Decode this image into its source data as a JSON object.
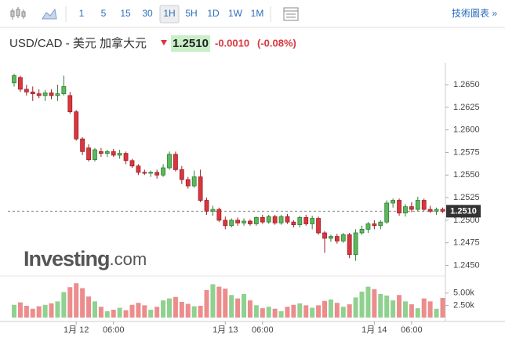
{
  "toolbar": {
    "intervals": [
      "1",
      "5",
      "15",
      "30",
      "1H",
      "5H",
      "1D",
      "1W",
      "1M"
    ],
    "active_interval": "1H",
    "technical_chart": "技術圖表 »"
  },
  "header": {
    "change": "-0.0010",
    "change_pct": "(-0.08%)"
  },
  "watermark": [
    "Investing",
    ".com"
  ],
  "chart_data": {
    "type": "candlestick",
    "title": "USD/CAD - 美元 加拿大元",
    "last_price": {
      "value": 1.251,
      "label": "1.2510"
    },
    "categories": [
      null,
      null,
      null,
      null,
      null,
      null,
      null,
      null,
      null,
      null,
      "1月 12",
      null,
      null,
      null,
      null,
      null,
      "06:00",
      null,
      null,
      null,
      null,
      null,
      null,
      null,
      null,
      null,
      null,
      null,
      null,
      null,
      null,
      null,
      null,
      null,
      "1月 13",
      null,
      null,
      null,
      null,
      null,
      "06:00",
      null,
      null,
      null,
      null,
      null,
      null,
      null,
      null,
      null,
      null,
      null,
      null,
      null,
      null,
      null,
      null,
      null,
      "1月 14",
      null,
      null,
      null,
      null,
      null,
      "06:00",
      null,
      null,
      null,
      null,
      null
    ],
    "open": [
      1.2652,
      1.2658,
      1.2645,
      1.2642,
      1.264,
      1.2638,
      1.2641,
      1.2638,
      1.264,
      1.2638,
      1.262,
      1.259,
      1.258,
      1.2567,
      1.2576,
      1.2574,
      1.2576,
      1.2572,
      1.2574,
      1.2566,
      1.256,
      1.2553,
      1.2552,
      1.2553,
      1.255,
      1.2558,
      1.2573,
      1.2556,
      1.2545,
      1.2538,
      1.2548,
      1.2522,
      1.251,
      1.2512,
      1.25,
      1.2494,
      1.25,
      1.2497,
      1.2499,
      1.2496,
      1.2503,
      1.2498,
      1.2504,
      1.2497,
      1.2504,
      1.2498,
      1.2495,
      1.2503,
      1.2496,
      1.2502,
      1.2486,
      1.248,
      1.2482,
      1.2477,
      1.2484,
      1.2462,
      1.2486,
      1.249,
      1.2496,
      1.2494,
      1.2498,
      1.2519,
      1.2522,
      1.2508,
      1.2515,
      1.2512,
      1.2522,
      1.2512,
      1.251,
      1.2512
    ],
    "high": [
      1.2662,
      1.266,
      1.265,
      1.2648,
      1.2645,
      1.2644,
      1.2645,
      1.265,
      1.266,
      1.2642,
      1.2622,
      1.2592,
      1.2584,
      1.258,
      1.258,
      1.2578,
      1.2579,
      1.2578,
      1.2576,
      1.2568,
      1.2562,
      1.2556,
      1.2555,
      1.2556,
      1.2562,
      1.2576,
      1.2576,
      1.256,
      1.2548,
      1.2555,
      1.2556,
      1.2525,
      1.2516,
      1.2514,
      1.2504,
      1.2502,
      1.2503,
      1.2502,
      1.2501,
      1.2504,
      1.2506,
      1.2506,
      1.2506,
      1.2506,
      1.2507,
      1.25,
      1.2505,
      1.2506,
      1.2505,
      1.2504,
      1.2488,
      1.2484,
      1.2485,
      1.2486,
      1.2486,
      1.249,
      1.2494,
      1.2498,
      1.25,
      1.25,
      1.2522,
      1.2524,
      1.2524,
      1.2518,
      1.252,
      1.2526,
      1.2524,
      1.2516,
      1.2514,
      1.2514
    ],
    "low": [
      1.2648,
      1.2642,
      1.2638,
      1.2632,
      1.2635,
      1.2632,
      1.2634,
      1.2632,
      1.2638,
      1.2618,
      1.2588,
      1.2572,
      1.2565,
      1.2565,
      1.257,
      1.257,
      1.257,
      1.2568,
      1.2562,
      1.2558,
      1.255,
      1.255,
      1.2548,
      1.2546,
      1.2548,
      1.2556,
      1.2554,
      1.254,
      1.2535,
      1.2536,
      1.252,
      1.2506,
      1.2505,
      1.2498,
      1.249,
      1.2492,
      1.2494,
      1.2494,
      1.2494,
      1.2494,
      1.2496,
      1.2496,
      1.2495,
      1.2495,
      1.2496,
      1.2492,
      1.2492,
      1.2494,
      1.249,
      1.2484,
      1.2464,
      1.2476,
      1.2474,
      1.2475,
      1.2458,
      1.2455,
      1.2484,
      1.2486,
      1.249,
      1.249,
      1.2496,
      1.2514,
      1.2505,
      1.2504,
      1.2509,
      1.251,
      1.251,
      1.2508,
      1.2506,
      1.2508
    ],
    "close": [
      1.266,
      1.2645,
      1.2642,
      1.264,
      1.2638,
      1.2641,
      1.2638,
      1.264,
      1.2648,
      1.262,
      1.259,
      1.2576,
      1.2567,
      1.2578,
      1.2574,
      1.2576,
      1.2572,
      1.2574,
      1.2566,
      1.256,
      1.2553,
      1.2552,
      1.2553,
      1.255,
      1.2558,
      1.2573,
      1.2556,
      1.2545,
      1.2538,
      1.2548,
      1.2522,
      1.251,
      1.2512,
      1.25,
      1.2494,
      1.25,
      1.2497,
      1.2499,
      1.2496,
      1.2503,
      1.2498,
      1.2504,
      1.2497,
      1.2504,
      1.2498,
      1.2495,
      1.2503,
      1.2496,
      1.2502,
      1.2486,
      1.248,
      1.2482,
      1.2477,
      1.2484,
      1.2462,
      1.2486,
      1.249,
      1.2496,
      1.2494,
      1.2498,
      1.2519,
      1.2522,
      1.2508,
      1.2515,
      1.2512,
      1.2522,
      1.2512,
      1.251,
      1.2512,
      1.251
    ],
    "up_color": "#5cb85c",
    "down_color": "#d9363e",
    "ylim": [
      1.244,
      1.267
    ],
    "yticks": [
      {
        "value": 1.245,
        "label": "1.2450"
      },
      {
        "value": 1.2475,
        "label": "1.2475"
      },
      {
        "value": 1.25,
        "label": "1.2500"
      },
      {
        "value": 1.2525,
        "label": "1.2525"
      },
      {
        "value": 1.255,
        "label": "1.2550"
      },
      {
        "value": 1.2575,
        "label": "1.2575"
      },
      {
        "value": 1.26,
        "label": "1.2600"
      },
      {
        "value": 1.2625,
        "label": "1.2625"
      },
      {
        "value": 1.265,
        "label": "1.2650"
      }
    ],
    "volume": [
      2600,
      3100,
      2400,
      1800,
      2300,
      2600,
      2900,
      3300,
      5200,
      6200,
      7000,
      6000,
      4300,
      3300,
      2200,
      1300,
      1600,
      2000,
      1500,
      2600,
      3000,
      2500,
      1600,
      2200,
      3500,
      3900,
      4200,
      3200,
      2800,
      2300,
      2400,
      5600,
      6800,
      6300,
      5900,
      4600,
      3900,
      4800,
      3500,
      2500,
      1900,
      2200,
      1800,
      1300,
      2200,
      2600,
      2900,
      2500,
      2000,
      2500,
      3400,
      3700,
      3000,
      2200,
      2700,
      4100,
      5300,
      6300,
      5800,
      4800,
      4500,
      3500,
      4600,
      3300,
      2700,
      1900,
      3900,
      3300,
      1800,
      4000
    ],
    "volume_ylim": [
      0,
      8000
    ],
    "volume_ticks": [
      {
        "value": 2500,
        "label": "2.50k"
      },
      {
        "value": 5000,
        "label": "5.00k"
      }
    ]
  }
}
